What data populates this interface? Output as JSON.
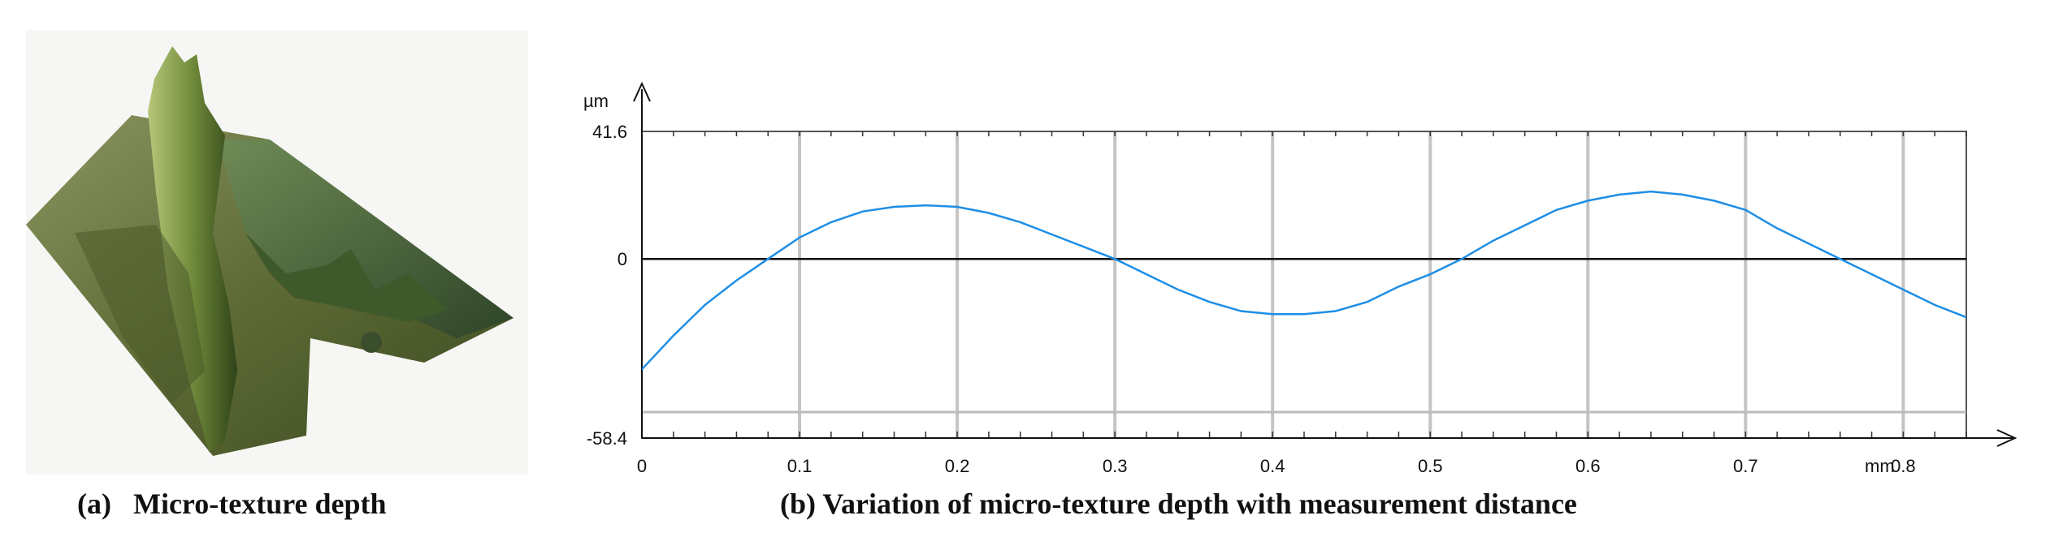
{
  "panel_a": {
    "caption": "(a)   Micro-texture depth"
  },
  "panel_b": {
    "caption": "(b) Variation of micro-texture depth with measurement distance"
  },
  "chart_data": {
    "type": "line",
    "title": "",
    "xlabel": "",
    "ylabel": "",
    "x_unit": "mm",
    "y_unit": "µm",
    "xlim": [
      0,
      0.84
    ],
    "ylim": [
      -58.4,
      41.6
    ],
    "x_ticks": [
      0,
      0.1,
      0.2,
      0.3,
      0.4,
      0.5,
      0.6,
      0.7,
      0.8
    ],
    "x_tick_labels": [
      "0",
      "0.1",
      "0.2",
      "0.3",
      "0.4",
      "0.5",
      "0.6",
      "0.7",
      "0.8"
    ],
    "y_ticks": [
      41.6,
      0,
      -58.4
    ],
    "y_tick_labels": [
      "41.6",
      "0",
      "-58.4"
    ],
    "grid": "vertical",
    "series": [
      {
        "color": "#1e8ee6",
        "x": [
          0,
          0.02,
          0.04,
          0.06,
          0.08,
          0.1,
          0.12,
          0.14,
          0.16,
          0.18,
          0.2,
          0.22,
          0.24,
          0.26,
          0.28,
          0.3,
          0.32,
          0.34,
          0.36,
          0.38,
          0.4,
          0.42,
          0.44,
          0.46,
          0.48,
          0.5,
          0.52,
          0.54,
          0.56,
          0.58,
          0.6,
          0.62,
          0.64,
          0.66,
          0.68,
          0.7,
          0.72,
          0.74,
          0.76,
          0.78,
          0.8,
          0.82,
          0.84
        ],
        "y": [
          -36,
          -25,
          -15,
          -7,
          0,
          7,
          12,
          15.5,
          17,
          17.5,
          17,
          15,
          12,
          8,
          4,
          0,
          -5,
          -10,
          -14,
          -17,
          -18,
          -18,
          -17,
          -14,
          -9,
          -5,
          0,
          6,
          11,
          16,
          19,
          21,
          22,
          21,
          19,
          16,
          10,
          5,
          0,
          -5,
          -10,
          -15,
          -19
        ]
      }
    ]
  }
}
